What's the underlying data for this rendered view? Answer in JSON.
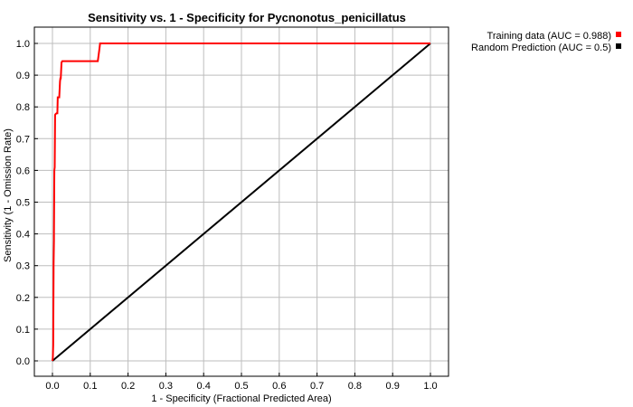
{
  "chart_data": {
    "type": "line",
    "title": "Sensitivity vs. 1 - Specificity for Pycnonotus_penicillatus",
    "xlabel": "1 - Specificity  (Fractional Predicted Area)",
    "ylabel": "Sensitivity  (1 - Omission Rate)",
    "xlim": [
      0,
      1
    ],
    "ylim": [
      0,
      1
    ],
    "x_ticks": [
      "0.0",
      "0.1",
      "0.2",
      "0.3",
      "0.4",
      "0.5",
      "0.6",
      "0.7",
      "0.8",
      "0.9",
      "1.0"
    ],
    "y_ticks": [
      "0.0",
      "0.1",
      "0.2",
      "0.3",
      "0.4",
      "0.5",
      "0.6",
      "0.7",
      "0.8",
      "0.9",
      "1.0"
    ],
    "grid": true,
    "legend_position": "top-right-outside",
    "series": [
      {
        "name": "Training data (AUC = 0.988)",
        "color": "#ff0000",
        "x": [
          0.0,
          0.001,
          0.002,
          0.003,
          0.003,
          0.004,
          0.004,
          0.005,
          0.006,
          0.007,
          0.008,
          0.009,
          0.01,
          0.011,
          0.013,
          0.014,
          0.018,
          0.02,
          0.021,
          0.022,
          0.024,
          0.026,
          0.12,
          0.124,
          0.126,
          0.4,
          0.7,
          1.0
        ],
        "y": [
          0.0,
          0.01,
          0.05,
          0.28,
          0.3,
          0.38,
          0.4,
          0.6,
          0.61,
          0.775,
          0.777,
          0.778,
          0.779,
          0.78,
          0.78,
          0.83,
          0.83,
          0.88,
          0.89,
          0.89,
          0.94,
          0.944,
          0.944,
          0.98,
          1.0,
          1.0,
          1.0,
          1.0
        ]
      },
      {
        "name": "Random Prediction (AUC = 0.5)",
        "color": "#000000",
        "x": [
          0,
          1
        ],
        "y": [
          0,
          1
        ]
      }
    ]
  }
}
